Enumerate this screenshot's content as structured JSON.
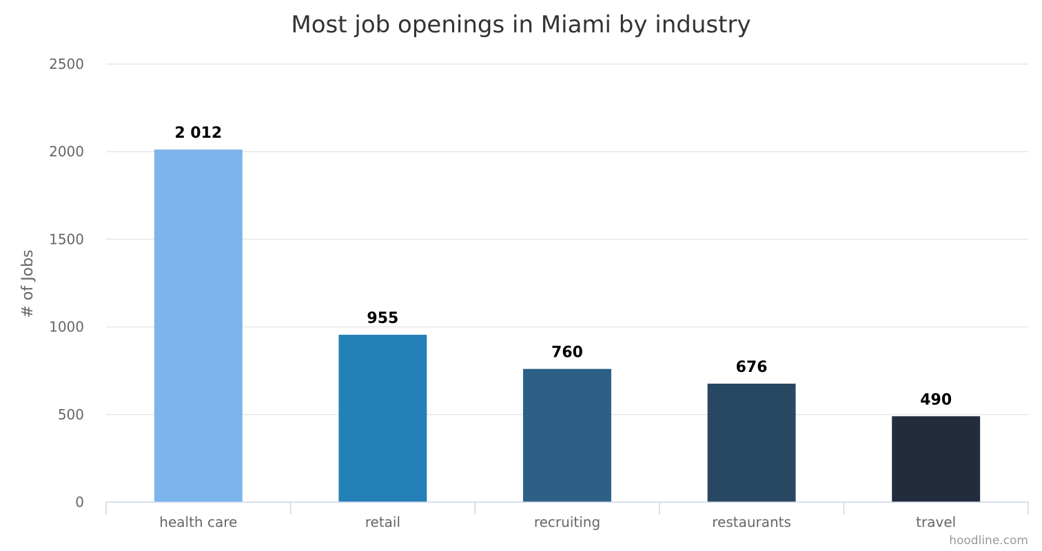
{
  "chart_data": {
    "type": "bar",
    "title": "Most job openings in Miami by industry",
    "ylabel": "# of Jobs",
    "xlabel": "",
    "categories": [
      "health care",
      "retail",
      "recruiting",
      "restaurants",
      "travel"
    ],
    "values": [
      2012,
      955,
      760,
      676,
      490
    ],
    "data_labels": [
      "2 012",
      "955",
      "760",
      "676",
      "490"
    ],
    "colors": [
      "#7cb4eb",
      "#2481b7",
      "#2c6087",
      "#284762",
      "#222c3c"
    ],
    "ylim": [
      0,
      2500
    ],
    "yticks": [
      "0",
      "500",
      "1000",
      "1500",
      "2000",
      "2500"
    ],
    "grid": true,
    "legend": "none"
  },
  "credit": "hoodline.com"
}
